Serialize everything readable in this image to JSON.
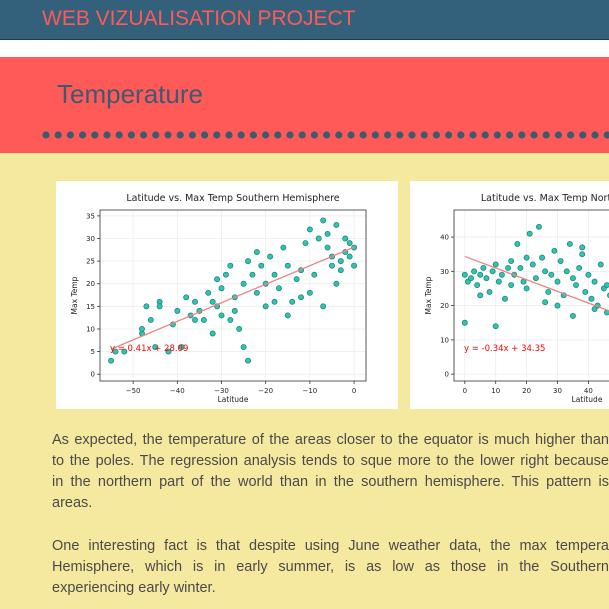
{
  "header": {
    "title": "WEB VIZUALISATION PROJECT"
  },
  "section": {
    "title": "Temperature"
  },
  "chart_data": [
    {
      "type": "scatter",
      "title": "Latitude vs. Max Temp Southern Hemisphere",
      "x_label": "Latitude",
      "y_label": "Max Temp",
      "color": "#2ec4b0",
      "edge_color": "#1a7f73",
      "line_color": "#f08080",
      "annotation_color": "#ff0000",
      "grid": true,
      "xlim": [
        -57.5,
        2.7
      ],
      "ylim": [
        -1.5,
        36.3
      ],
      "xticks": [
        {
          "value": -50,
          "label": "−50"
        },
        {
          "value": -40,
          "label": "−40"
        },
        {
          "value": -30,
          "label": "−30"
        },
        {
          "value": -20,
          "label": "−20"
        },
        {
          "value": -10,
          "label": "−10"
        },
        0
      ],
      "yticks": [
        0,
        5,
        10,
        15,
        20,
        25,
        30,
        35
      ],
      "x": [
        -55,
        -54,
        -52,
        -48,
        -48,
        -47,
        -46,
        -45,
        -44,
        -42,
        -41,
        -40,
        -39,
        -38,
        -37,
        -36,
        -35,
        -34,
        -33,
        -32,
        -31,
        -31,
        -30,
        -30,
        -29,
        -28,
        -27,
        -26,
        -25,
        -25,
        -24,
        -24,
        -23,
        -22,
        -21,
        -20,
        -20,
        -19,
        -18,
        -17,
        -16,
        -15,
        -15,
        -14,
        -13,
        -12,
        -11,
        -10,
        -10,
        -9,
        -8,
        -7,
        -7,
        -6,
        -5,
        -5,
        -4,
        -4,
        -3,
        -2,
        -2,
        -1,
        0,
        0,
        -1,
        -3,
        -6,
        -12,
        -18,
        -22,
        -28,
        -32,
        -36,
        -44,
        -27
      ],
      "values": [
        3,
        5,
        5,
        9,
        10,
        15,
        12,
        6,
        16,
        5,
        11,
        14,
        6,
        17,
        13,
        12,
        14,
        12,
        18,
        16,
        15,
        21,
        19,
        13,
        22,
        24,
        14,
        10,
        20,
        6,
        3,
        25,
        22,
        18,
        24,
        20,
        15,
        26,
        22,
        19,
        28,
        24,
        13,
        16,
        21,
        17,
        29,
        18,
        32,
        22,
        30,
        34,
        15,
        28,
        26,
        24,
        33,
        20,
        25,
        30,
        27,
        29,
        28,
        24,
        26,
        23,
        31,
        23,
        16,
        27,
        12,
        9,
        16,
        15,
        17
      ],
      "regression": {
        "slope": 0.41,
        "intercept": 28.09,
        "label": "y = 0.41x + 28.09"
      }
    },
    {
      "type": "scatter",
      "title": "Latitude vs. Max Temp Northern Hemisphere",
      "x_label": "Latitude",
      "y_label": "Max Temp",
      "color": "#2ec4b0",
      "edge_color": "#1a7f73",
      "line_color": "#f08080",
      "annotation_color": "#ff0000",
      "grid": true,
      "xlim": [
        -3.5,
        82.6
      ],
      "ylim": [
        -2,
        47.9
      ],
      "xticks": [
        0,
        10,
        20,
        30,
        40
      ],
      "yticks": [
        0,
        10,
        20,
        30,
        40
      ],
      "x": [
        0,
        0,
        1,
        2,
        3,
        4,
        5,
        6,
        7,
        8,
        9,
        10,
        11,
        12,
        13,
        14,
        15,
        16,
        17,
        18,
        19,
        20,
        21,
        22,
        23,
        24,
        25,
        26,
        27,
        28,
        29,
        30,
        31,
        32,
        33,
        34,
        35,
        36,
        37,
        38,
        39,
        40,
        41,
        42,
        43,
        44,
        45,
        46,
        47,
        48,
        10,
        35,
        20,
        26,
        5,
        15,
        30,
        38,
        42,
        46
      ],
      "values": [
        15,
        29,
        27,
        28,
        30,
        26,
        29,
        31,
        28,
        24,
        30,
        32,
        27,
        29,
        22,
        31,
        26,
        29,
        38,
        31,
        27,
        25,
        41,
        32,
        28,
        43,
        34,
        30,
        24,
        29,
        36,
        27,
        33,
        23,
        30,
        38,
        28,
        26,
        31,
        35,
        24,
        29,
        22,
        27,
        20,
        32,
        25,
        18,
        23,
        10,
        14,
        17,
        34,
        21,
        23,
        33,
        20,
        37,
        19,
        26
      ],
      "regression": {
        "slope": -0.34,
        "intercept": 34.35,
        "label": "y = -0.34x + 34.35"
      }
    }
  ],
  "paragraphs": [
    {
      "lines": [
        "As expected, the temperature of the areas closer to the equator is much higher than",
        "to the poles. The regression analysis tends to sque more to the lower right because",
        "in the northern part of the world than in the southern hemisphere. This pattern is",
        "areas."
      ]
    },
    {
      "lines": [
        "One interesting fact is that despite using June weather data, the max tempera",
        "Hemisphere, which is in early summer, is as low as those in the Southern",
        "experiencing early winter."
      ]
    }
  ]
}
